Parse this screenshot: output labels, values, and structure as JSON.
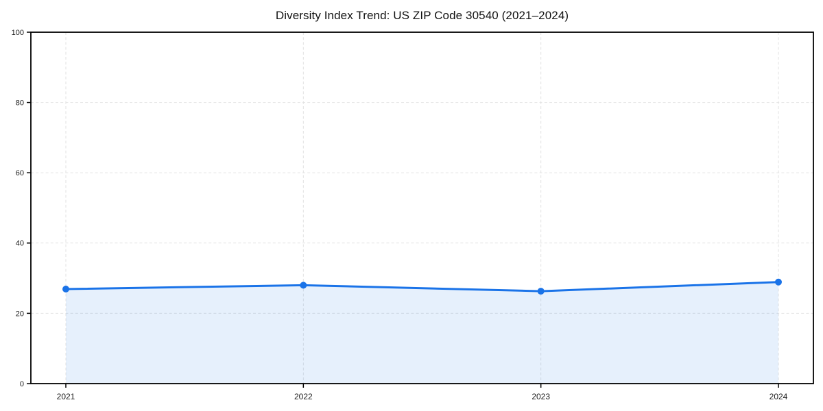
{
  "chart_data": {
    "type": "area",
    "title": "Diversity Index Trend: US ZIP Code 30540 (2021–2024)",
    "categories": [
      "2021",
      "2022",
      "2023",
      "2024"
    ],
    "series": [
      {
        "name": "Diversity Index",
        "values": [
          26.9,
          28.0,
          26.3,
          28.9
        ]
      }
    ],
    "xlabel": "",
    "ylabel": "",
    "ylim": [
      0,
      100
    ],
    "yticks": [
      0,
      20,
      40,
      60,
      80,
      100
    ],
    "grid": "dashed",
    "legend": "none",
    "colors": {
      "line": "#1a73e8",
      "marker": "#1a73e8",
      "fill": "rgba(26,115,232,0.11)",
      "grid": "#e2e2e2",
      "axis": "#000000",
      "tick_label": "#1a1a1a",
      "background": "#ffffff"
    }
  }
}
